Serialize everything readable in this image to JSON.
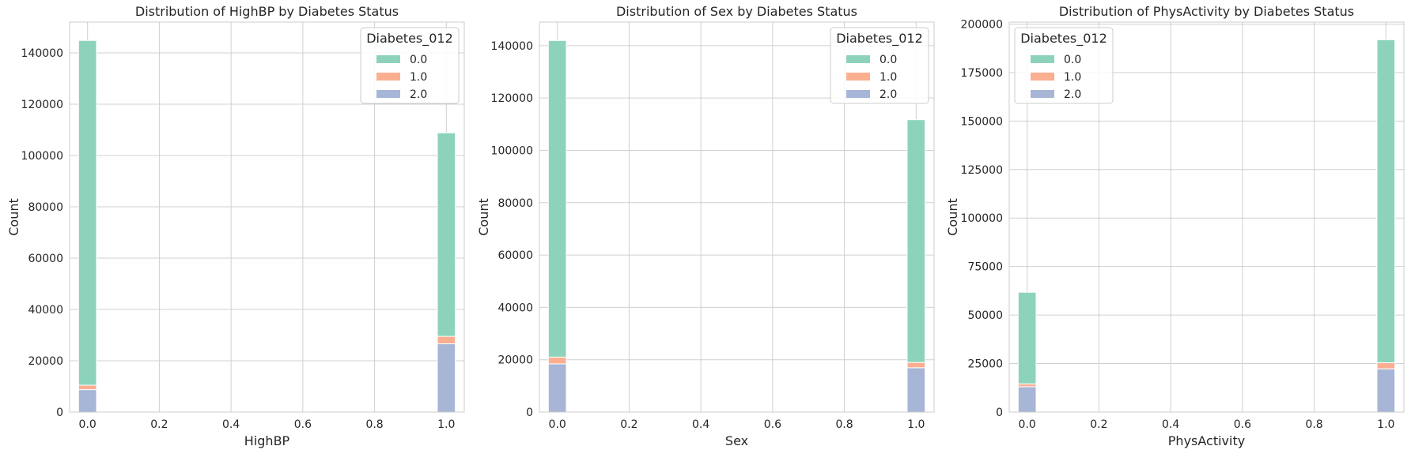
{
  "figure_title": "",
  "colors": {
    "0.0": "#8dd3bc",
    "1.0": "#fcae91",
    "2.0": "#a7b5d6",
    "grid": "#d0d0d0",
    "spine": "#cccccc"
  },
  "chart_data": [
    {
      "type": "bar",
      "stacked": true,
      "title": "Distribution of HighBP by Diabetes Status",
      "xlabel": "HighBP",
      "ylabel": "Count",
      "xlim": [
        -0.05,
        1.05
      ],
      "ylim": [
        0,
        152000
      ],
      "xticks": [
        "0.0",
        "0.2",
        "0.4",
        "0.6",
        "0.8",
        "1.0"
      ],
      "yticks": [
        0,
        20000,
        40000,
        60000,
        80000,
        100000,
        120000,
        140000
      ],
      "grid": true,
      "legend": {
        "title": "Diabetes_012",
        "placement": "top-right",
        "entries": [
          "0.0",
          "1.0",
          "2.0"
        ]
      },
      "bars": [
        {
          "x": 0.0,
          "width": 0.05,
          "values": {
            "0.0": 134391,
            "1.0": 1718,
            "2.0": 8742
          }
        },
        {
          "x": 1.0,
          "width": 0.05,
          "values": {
            "0.0": 79312,
            "1.0": 2913,
            "2.0": 26604
          }
        }
      ]
    },
    {
      "type": "bar",
      "stacked": true,
      "title": "Distribution of Sex by Diabetes Status",
      "xlabel": "Sex",
      "ylabel": "Count",
      "xlim": [
        -0.05,
        1.05
      ],
      "ylim": [
        0,
        149000
      ],
      "xticks": [
        "0.0",
        "0.2",
        "0.4",
        "0.6",
        "0.8",
        "1.0"
      ],
      "yticks": [
        0,
        20000,
        40000,
        60000,
        80000,
        100000,
        120000,
        140000
      ],
      "grid": true,
      "legend": {
        "title": "Diabetes_012",
        "placement": "top-right",
        "entries": [
          "0.0",
          "1.0",
          "2.0"
        ]
      },
      "bars": [
        {
          "x": 0.0,
          "width": 0.05,
          "values": {
            "0.0": 120959,
            "1.0": 2604,
            "2.0": 18411
          }
        },
        {
          "x": 1.0,
          "width": 0.05,
          "values": {
            "0.0": 92744,
            "1.0": 2027,
            "2.0": 16935
          }
        }
      ]
    },
    {
      "type": "bar",
      "stacked": true,
      "title": "Distribution of PhysActivity by Diabetes Status",
      "xlabel": "PhysActivity",
      "ylabel": "Count",
      "xlim": [
        -0.05,
        1.05
      ],
      "ylim": [
        0,
        201000
      ],
      "xticks": [
        "0.0",
        "0.2",
        "0.4",
        "0.6",
        "0.8",
        "1.0"
      ],
      "yticks": [
        0,
        25000,
        50000,
        75000,
        100000,
        125000,
        150000,
        175000,
        200000
      ],
      "grid": true,
      "legend": {
        "title": "Diabetes_012",
        "placement": "top-left",
        "entries": [
          "0.0",
          "1.0",
          "2.0"
        ]
      },
      "bars": [
        {
          "x": 0.0,
          "width": 0.05,
          "values": {
            "0.0": 47212,
            "1.0": 1489,
            "2.0": 13059
          }
        },
        {
          "x": 1.0,
          "width": 0.05,
          "values": {
            "0.0": 166491,
            "1.0": 3142,
            "2.0": 22287
          }
        }
      ]
    }
  ]
}
